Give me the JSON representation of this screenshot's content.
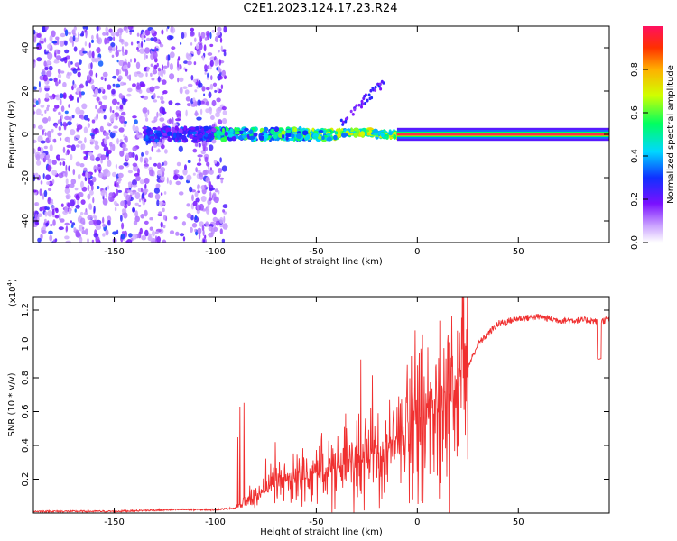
{
  "title": "C2E1.2023.124.17.23.R24",
  "chart_data": [
    {
      "type": "heatmap",
      "name": "spectrogram",
      "xlabel": "Height of straight line (km)",
      "ylabel": "Frequency (Hz)",
      "xlim": [
        -190,
        95
      ],
      "ylim": [
        -50,
        50
      ],
      "xticks": [
        -150,
        -100,
        -50,
        0,
        50
      ],
      "yticks": [
        -40,
        -20,
        0,
        20,
        40
      ],
      "description_series": [
        {
          "name": "scattered noise region",
          "x_range": [
            -190,
            -100
          ],
          "amplitude": [
            0.1,
            0.3
          ]
        },
        {
          "name": "signal line",
          "x_range": [
            -100,
            95
          ],
          "frequency": 0,
          "amplitude_start": 0.3,
          "amplitude_end": 1.0
        }
      ]
    },
    {
      "type": "colorbar",
      "name": "colorbar",
      "label": "Normalized spectral amplitude",
      "range": [
        0.0,
        1.0
      ],
      "ticks": [
        0.0,
        0.2,
        0.4,
        0.6,
        0.8
      ]
    },
    {
      "type": "line",
      "name": "snr",
      "xlabel": "Height of straight line (km)",
      "ylabel": "SNR (10 * v/v)",
      "scale_label": "(x10",
      "scale_exp": "4",
      "scale_close": ")",
      "xlim": [
        -190,
        95
      ],
      "ylim": [
        0,
        1.28
      ],
      "xticks": [
        -150,
        -100,
        -50,
        0,
        50
      ],
      "yticks": [
        "0.2",
        "0.4",
        "0.6",
        "0.8",
        "1.0",
        "1.2"
      ],
      "color": "#f03030",
      "x": [
        -190,
        -150,
        -120,
        -100,
        -90,
        -80,
        -70,
        -60,
        -50,
        -40,
        -30,
        -20,
        -10,
        0,
        10,
        20,
        30,
        40,
        50,
        60,
        70,
        80,
        85,
        90,
        95
      ],
      "y": [
        0.01,
        0.01,
        0.02,
        0.02,
        0.03,
        0.1,
        0.18,
        0.2,
        0.22,
        0.28,
        0.3,
        0.35,
        0.45,
        0.55,
        0.62,
        0.72,
        1.0,
        1.12,
        1.15,
        1.16,
        1.14,
        1.14,
        1.14,
        1.13,
        1.15
      ]
    }
  ]
}
